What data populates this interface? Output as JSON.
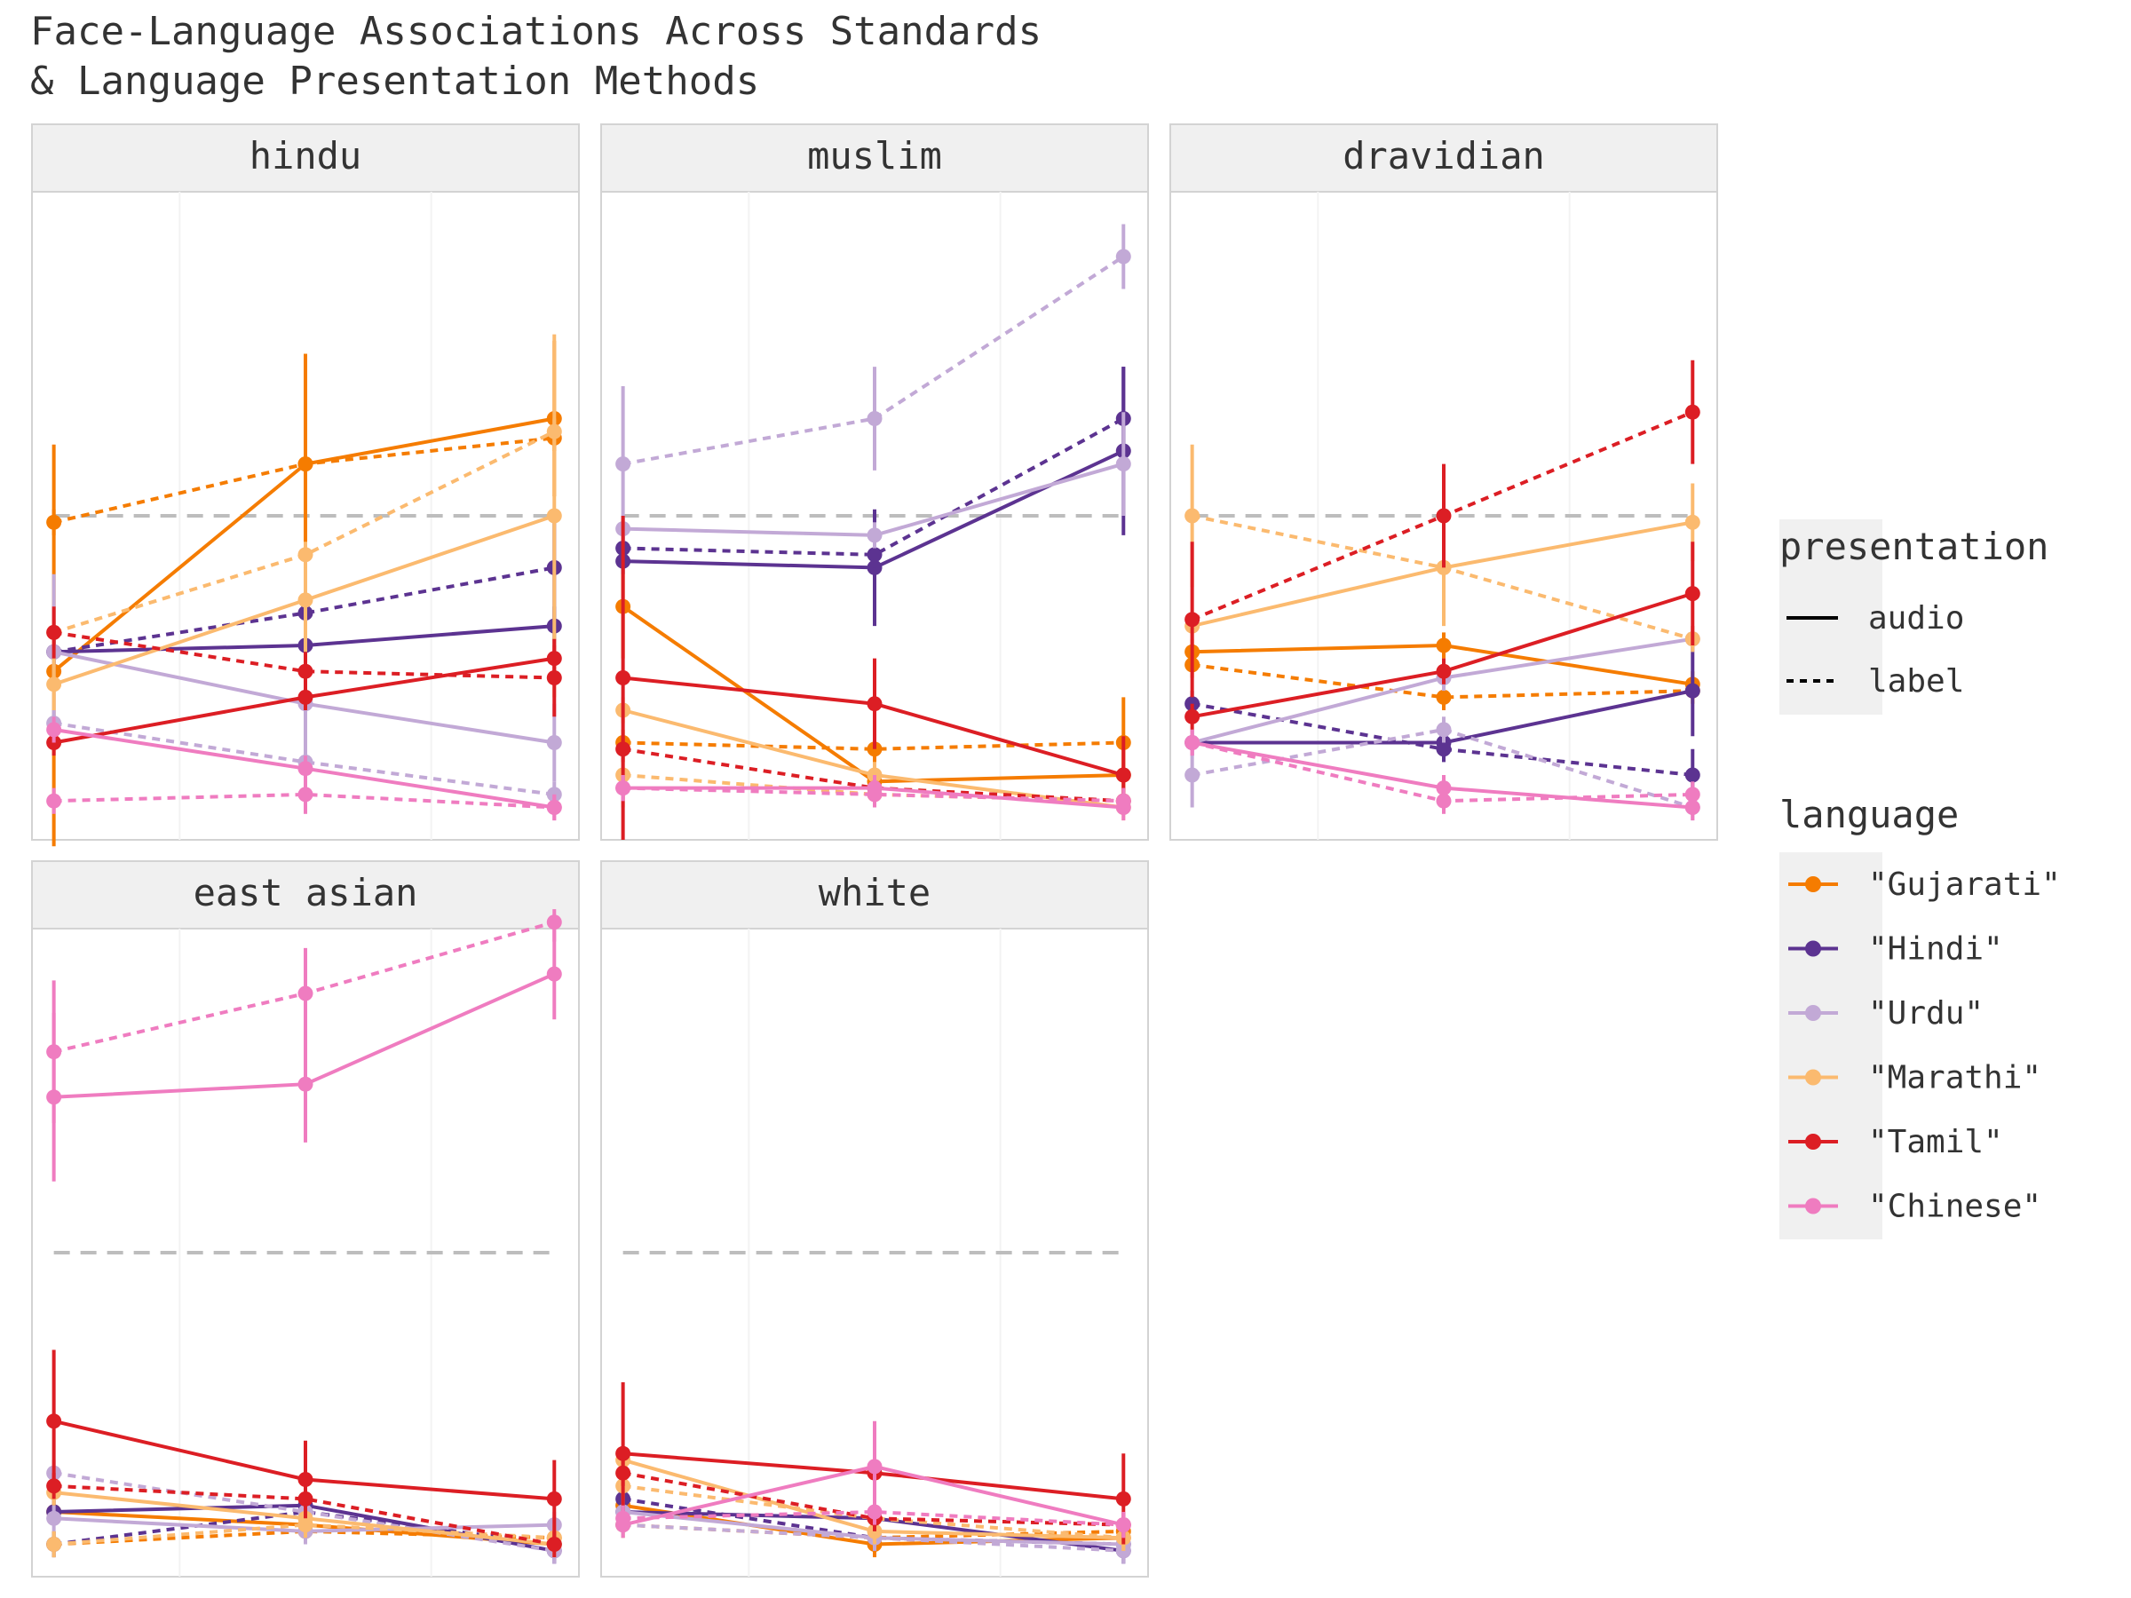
{
  "chart_data": {
    "type": "line",
    "title_lines": [
      "Face-Language Associations Across Standards",
      "& Language Presentation Methods"
    ],
    "facets": [
      "hindu",
      "muslim",
      "dravidian",
      "east asian",
      "white"
    ],
    "x_positions": [
      1,
      2,
      3
    ],
    "ylim": [
      0,
      1
    ],
    "reference_line": 0.5,
    "legend": {
      "presentation": {
        "title": "presentation",
        "items": [
          "audio",
          "label"
        ]
      },
      "language": {
        "title": "language",
        "items": [
          "\"Gujarati\"",
          "\"Hindi\"",
          "\"Urdu\"",
          "\"Marathi\"",
          "\"Tamil\"",
          "\"Chinese\""
        ]
      }
    },
    "colors": {
      "Gujarati": "#f57c00",
      "Hindi": "#5c3391",
      "Urdu": "#c2a9d6",
      "Marathi": "#fbba6f",
      "Tamil": "#dc1e24",
      "Chinese": "#ef7cc0",
      "ref_line": "#bdbdbd",
      "strip_bg": "#f0f0f0",
      "panel_border": "#d3d3d3"
    },
    "series": [
      {
        "facet": "hindu",
        "language": "Gujarati",
        "presentation": "audio",
        "values": [
          0.26,
          0.58,
          0.65
        ],
        "err": [
          0.35,
          0.17,
          0.12
        ]
      },
      {
        "facet": "hindu",
        "language": "Gujarati",
        "presentation": "label",
        "values": [
          0.49,
          0.58,
          0.62
        ],
        "err": [
          0.02,
          0.02,
          0.02
        ]
      },
      {
        "facet": "hindu",
        "language": "Hindi",
        "presentation": "audio",
        "values": [
          0.29,
          0.3,
          0.33
        ],
        "err": [
          0.02,
          0.03,
          0.03
        ]
      },
      {
        "facet": "hindu",
        "language": "Hindi",
        "presentation": "label",
        "values": [
          0.29,
          0.35,
          0.42
        ],
        "err": [
          0.02,
          0.02,
          0.08
        ]
      },
      {
        "facet": "hindu",
        "language": "Urdu",
        "presentation": "audio",
        "values": [
          0.29,
          0.21,
          0.15
        ],
        "err": [
          0.12,
          0.06,
          0.06
        ]
      },
      {
        "facet": "hindu",
        "language": "Urdu",
        "presentation": "label",
        "values": [
          0.18,
          0.12,
          0.07
        ],
        "err": [
          0.02,
          0.03,
          0.02
        ]
      },
      {
        "facet": "hindu",
        "language": "Marathi",
        "presentation": "audio",
        "values": [
          0.24,
          0.37,
          0.5
        ],
        "err": [
          0.04,
          0.08,
          0.28
        ]
      },
      {
        "facet": "hindu",
        "language": "Marathi",
        "presentation": "label",
        "values": [
          0.32,
          0.44,
          0.63
        ],
        "err": [
          0.02,
          0.02,
          0.02
        ]
      },
      {
        "facet": "hindu",
        "language": "Tamil",
        "presentation": "audio",
        "values": [
          0.15,
          0.22,
          0.28
        ],
        "err": [
          0.02,
          0.02,
          0.02
        ]
      },
      {
        "facet": "hindu",
        "language": "Tamil",
        "presentation": "label",
        "values": [
          0.32,
          0.26,
          0.25
        ],
        "err": [
          0.04,
          0.03,
          0.06
        ]
      },
      {
        "facet": "hindu",
        "language": "Chinese",
        "presentation": "audio",
        "values": [
          0.17,
          0.11,
          0.05
        ],
        "err": [
          0.02,
          0.02,
          0.02
        ]
      },
      {
        "facet": "hindu",
        "language": "Chinese",
        "presentation": "label",
        "values": [
          0.06,
          0.07,
          0.05
        ],
        "err": [
          0.02,
          0.03,
          0.02
        ]
      },
      {
        "facet": "muslim",
        "language": "Gujarati",
        "presentation": "audio",
        "values": [
          0.36,
          0.09,
          0.1
        ],
        "err": [
          0.08,
          0.02,
          0.04
        ]
      },
      {
        "facet": "muslim",
        "language": "Gujarati",
        "presentation": "label",
        "values": [
          0.15,
          0.14,
          0.15
        ],
        "err": [
          0.02,
          0.02,
          0.07
        ]
      },
      {
        "facet": "muslim",
        "language": "Hindi",
        "presentation": "audio",
        "values": [
          0.43,
          0.42,
          0.6
        ],
        "err": [
          0.02,
          0.09,
          0.13
        ]
      },
      {
        "facet": "muslim",
        "language": "Hindi",
        "presentation": "label",
        "values": [
          0.45,
          0.44,
          0.65
        ],
        "err": [
          0.02,
          0.02,
          0.08
        ]
      },
      {
        "facet": "muslim",
        "language": "Urdu",
        "presentation": "audio",
        "values": [
          0.48,
          0.47,
          0.58
        ],
        "err": [
          0.02,
          0.02,
          0.08
        ]
      },
      {
        "facet": "muslim",
        "language": "Urdu",
        "presentation": "label",
        "values": [
          0.58,
          0.65,
          0.9
        ],
        "err": [
          0.12,
          0.08,
          0.05
        ]
      },
      {
        "facet": "muslim",
        "language": "Marathi",
        "presentation": "audio",
        "values": [
          0.2,
          0.1,
          0.05
        ],
        "err": [
          0.02,
          0.02,
          0.02
        ]
      },
      {
        "facet": "muslim",
        "language": "Marathi",
        "presentation": "label",
        "values": [
          0.1,
          0.07,
          0.06
        ],
        "err": [
          0.05,
          0.02,
          0.02
        ]
      },
      {
        "facet": "muslim",
        "language": "Tamil",
        "presentation": "audio",
        "values": [
          0.25,
          0.21,
          0.1
        ],
        "err": [
          0.25,
          0.07,
          0.06
        ]
      },
      {
        "facet": "muslim",
        "language": "Tamil",
        "presentation": "label",
        "values": [
          0.14,
          0.08,
          0.06
        ],
        "err": [
          0.02,
          0.02,
          0.02
        ]
      },
      {
        "facet": "muslim",
        "language": "Chinese",
        "presentation": "audio",
        "values": [
          0.08,
          0.08,
          0.05
        ],
        "err": [
          0.02,
          0.02,
          0.02
        ]
      },
      {
        "facet": "muslim",
        "language": "Chinese",
        "presentation": "label",
        "values": [
          0.08,
          0.07,
          0.06
        ],
        "err": [
          0.02,
          0.02,
          0.02
        ]
      },
      {
        "facet": "dravidian",
        "language": "Gujarati",
        "presentation": "audio",
        "values": [
          0.29,
          0.3,
          0.24
        ],
        "err": [
          0.02,
          0.02,
          0.02
        ]
      },
      {
        "facet": "dravidian",
        "language": "Gujarati",
        "presentation": "label",
        "values": [
          0.27,
          0.22,
          0.23
        ],
        "err": [
          0.02,
          0.02,
          0.02
        ]
      },
      {
        "facet": "dravidian",
        "language": "Hindi",
        "presentation": "audio",
        "values": [
          0.15,
          0.15,
          0.23
        ],
        "err": [
          0.02,
          0.02,
          0.07
        ]
      },
      {
        "facet": "dravidian",
        "language": "Hindi",
        "presentation": "label",
        "values": [
          0.21,
          0.14,
          0.1
        ],
        "err": [
          0.02,
          0.02,
          0.04
        ]
      },
      {
        "facet": "dravidian",
        "language": "Urdu",
        "presentation": "audio",
        "values": [
          0.15,
          0.25,
          0.31
        ],
        "err": [
          0.02,
          0.02,
          0.02
        ]
      },
      {
        "facet": "dravidian",
        "language": "Urdu",
        "presentation": "label",
        "values": [
          0.1,
          0.17,
          0.05
        ],
        "err": [
          0.05,
          0.02,
          0.02
        ]
      },
      {
        "facet": "dravidian",
        "language": "Marathi",
        "presentation": "audio",
        "values": [
          0.33,
          0.42,
          0.49
        ],
        "err": [
          0.02,
          0.09,
          0.06
        ]
      },
      {
        "facet": "dravidian",
        "language": "Marathi",
        "presentation": "label",
        "values": [
          0.5,
          0.42,
          0.31
        ],
        "err": [
          0.11,
          0.02,
          0.02
        ]
      },
      {
        "facet": "dravidian",
        "language": "Tamil",
        "presentation": "audio",
        "values": [
          0.19,
          0.26,
          0.38
        ],
        "err": [
          0.02,
          0.02,
          0.08
        ]
      },
      {
        "facet": "dravidian",
        "language": "Tamil",
        "presentation": "label",
        "values": [
          0.34,
          0.5,
          0.66
        ],
        "err": [
          0.12,
          0.08,
          0.08
        ]
      },
      {
        "facet": "dravidian",
        "language": "Chinese",
        "presentation": "audio",
        "values": [
          0.15,
          0.08,
          0.05
        ],
        "err": [
          0.02,
          0.02,
          0.02
        ]
      },
      {
        "facet": "dravidian",
        "language": "Chinese",
        "presentation": "label",
        "values": [
          0.15,
          0.06,
          0.07
        ],
        "err": [
          0.02,
          0.02,
          0.02
        ]
      },
      {
        "facet": "east asian",
        "language": "Gujarati",
        "presentation": "audio",
        "values": [
          0.1,
          0.08,
          0.05
        ],
        "err": [
          0.02,
          0.02,
          0.02
        ]
      },
      {
        "facet": "east asian",
        "language": "Gujarati",
        "presentation": "label",
        "values": [
          0.05,
          0.07,
          0.06
        ],
        "err": [
          0.02,
          0.02,
          0.02
        ]
      },
      {
        "facet": "east asian",
        "language": "Hindi",
        "presentation": "audio",
        "values": [
          0.1,
          0.11,
          0.04
        ],
        "err": [
          0.02,
          0.02,
          0.02
        ]
      },
      {
        "facet": "east asian",
        "language": "Hindi",
        "presentation": "label",
        "values": [
          0.05,
          0.1,
          0.05
        ],
        "err": [
          0.02,
          0.02,
          0.02
        ]
      },
      {
        "facet": "east asian",
        "language": "Urdu",
        "presentation": "audio",
        "values": [
          0.09,
          0.07,
          0.08
        ],
        "err": [
          0.02,
          0.02,
          0.02
        ]
      },
      {
        "facet": "east asian",
        "language": "Urdu",
        "presentation": "label",
        "values": [
          0.16,
          0.1,
          0.04
        ],
        "err": [
          0.02,
          0.02,
          0.02
        ]
      },
      {
        "facet": "east asian",
        "language": "Marathi",
        "presentation": "audio",
        "values": [
          0.13,
          0.09,
          0.05
        ],
        "err": [
          0.02,
          0.02,
          0.02
        ]
      },
      {
        "facet": "east asian",
        "language": "Marathi",
        "presentation": "label",
        "values": [
          0.05,
          0.08,
          0.06
        ],
        "err": [
          0.02,
          0.02,
          0.02
        ]
      },
      {
        "facet": "east asian",
        "language": "Tamil",
        "presentation": "audio",
        "values": [
          0.24,
          0.15,
          0.12
        ],
        "err": [
          0.11,
          0.06,
          0.06
        ]
      },
      {
        "facet": "east asian",
        "language": "Tamil",
        "presentation": "label",
        "values": [
          0.14,
          0.12,
          0.05
        ],
        "err": [
          0.02,
          0.02,
          0.02
        ]
      },
      {
        "facet": "east asian",
        "language": "Chinese",
        "presentation": "audio",
        "values": [
          0.74,
          0.76,
          0.93
        ],
        "err": [
          0.13,
          0.09,
          0.07
        ]
      },
      {
        "facet": "east asian",
        "language": "Chinese",
        "presentation": "label",
        "values": [
          0.81,
          0.9,
          1.01
        ],
        "err": [
          0.11,
          0.07,
          0.03
        ]
      },
      {
        "facet": "white",
        "language": "Gujarati",
        "presentation": "audio",
        "values": [
          0.11,
          0.05,
          0.06
        ],
        "err": [
          0.02,
          0.02,
          0.02
        ]
      },
      {
        "facet": "white",
        "language": "Gujarati",
        "presentation": "label",
        "values": [
          0.08,
          0.06,
          0.07
        ],
        "err": [
          0.02,
          0.02,
          0.02
        ]
      },
      {
        "facet": "white",
        "language": "Hindi",
        "presentation": "audio",
        "values": [
          0.1,
          0.09,
          0.04
        ],
        "err": [
          0.02,
          0.02,
          0.02
        ]
      },
      {
        "facet": "white",
        "language": "Hindi",
        "presentation": "label",
        "values": [
          0.12,
          0.06,
          0.05
        ],
        "err": [
          0.02,
          0.02,
          0.02
        ]
      },
      {
        "facet": "white",
        "language": "Urdu",
        "presentation": "audio",
        "values": [
          0.1,
          0.06,
          0.05
        ],
        "err": [
          0.02,
          0.02,
          0.02
        ]
      },
      {
        "facet": "white",
        "language": "Urdu",
        "presentation": "label",
        "values": [
          0.08,
          0.06,
          0.04
        ],
        "err": [
          0.02,
          0.02,
          0.02
        ]
      },
      {
        "facet": "white",
        "language": "Marathi",
        "presentation": "audio",
        "values": [
          0.18,
          0.07,
          0.06
        ],
        "err": [
          0.02,
          0.02,
          0.02
        ]
      },
      {
        "facet": "white",
        "language": "Marathi",
        "presentation": "label",
        "values": [
          0.14,
          0.09,
          0.06
        ],
        "err": [
          0.02,
          0.02,
          0.02
        ]
      },
      {
        "facet": "white",
        "language": "Tamil",
        "presentation": "audio",
        "values": [
          0.19,
          0.16,
          0.12
        ],
        "err": [
          0.11,
          0.06,
          0.07
        ]
      },
      {
        "facet": "white",
        "language": "Tamil",
        "presentation": "label",
        "values": [
          0.16,
          0.09,
          0.08
        ],
        "err": [
          0.02,
          0.02,
          0.02
        ]
      },
      {
        "facet": "white",
        "language": "Chinese",
        "presentation": "audio",
        "values": [
          0.08,
          0.17,
          0.08
        ],
        "err": [
          0.02,
          0.07,
          0.02
        ]
      },
      {
        "facet": "white",
        "language": "Chinese",
        "presentation": "label",
        "values": [
          0.09,
          0.1,
          0.08
        ],
        "err": [
          0.02,
          0.02,
          0.02
        ]
      }
    ]
  }
}
